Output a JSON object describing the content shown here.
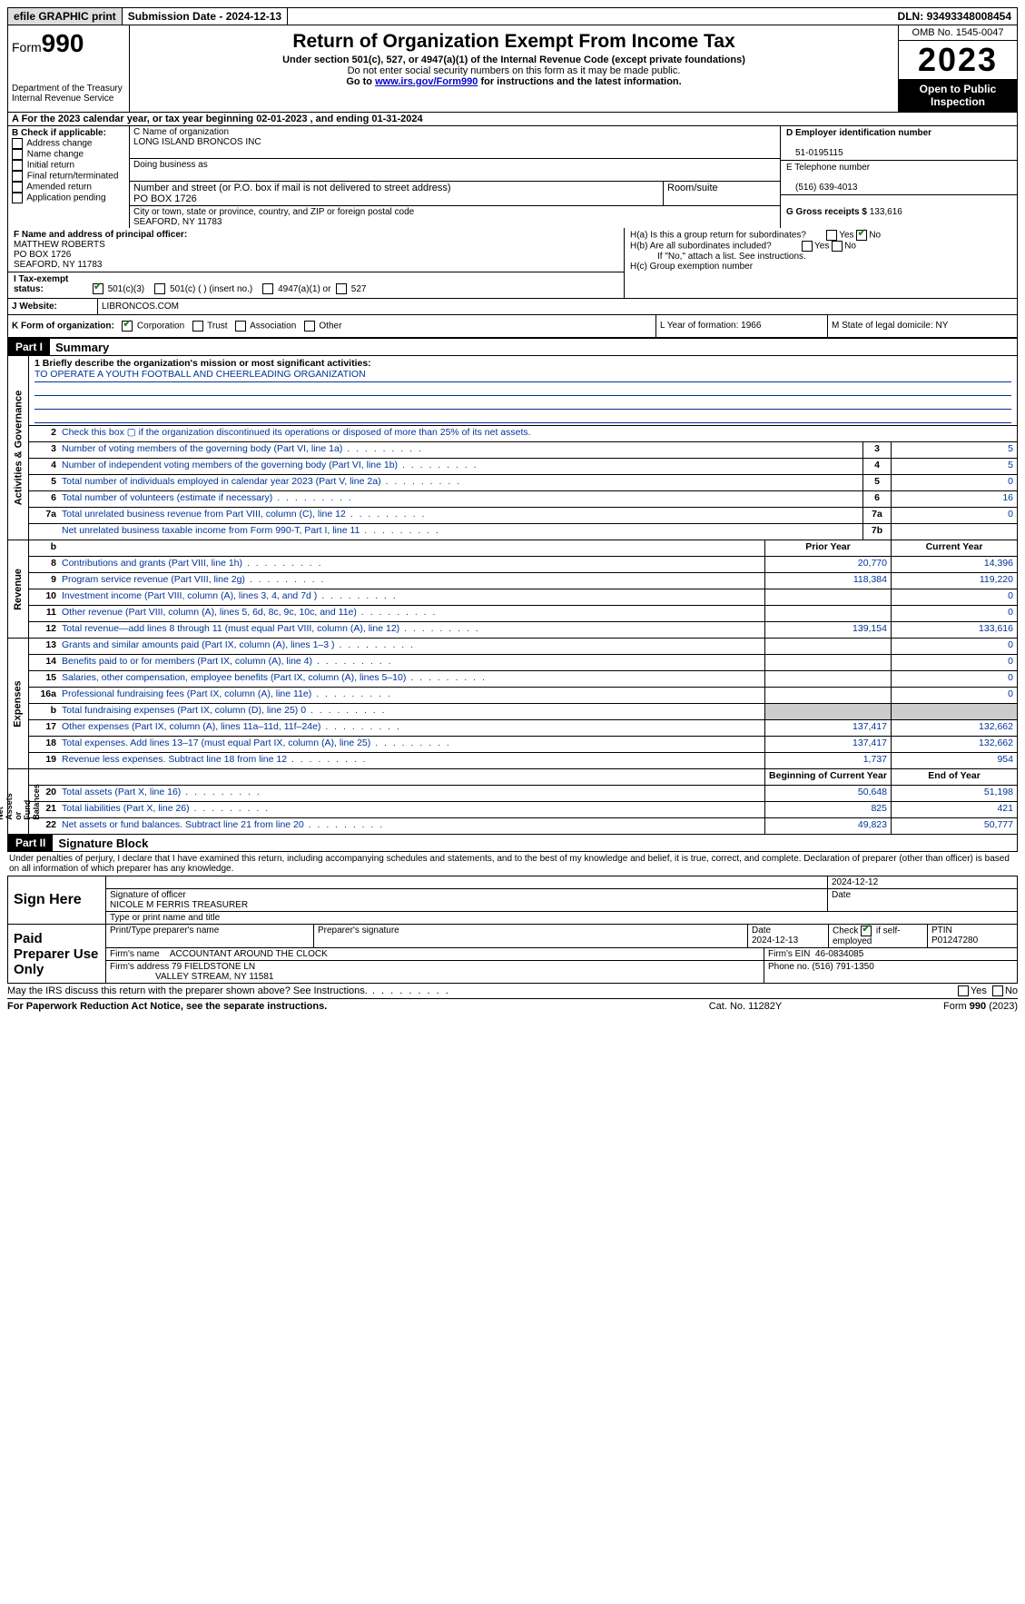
{
  "topbar": {
    "efile": "efile GRAPHIC print",
    "submission": "Submission Date - 2024-12-13",
    "dln_label": "DLN:",
    "dln": "93493348008454"
  },
  "header": {
    "form_prefix": "Form",
    "form_num": "990",
    "dept": "Department of the Treasury\nInternal Revenue Service",
    "title": "Return of Organization Exempt From Income Tax",
    "sub1": "Under section 501(c), 527, or 4947(a)(1) of the Internal Revenue Code (except private foundations)",
    "sub2": "Do not enter social security numbers on this form as it may be made public.",
    "sub3_pre": "Go to ",
    "sub3_link": "www.irs.gov/Form990",
    "sub3_post": " for instructions and the latest information.",
    "omb": "OMB No. 1545-0047",
    "year": "2023",
    "inspect": "Open to Public Inspection"
  },
  "row_a": "A For the 2023 calendar year, or tax year beginning 02-01-2023   , and ending 01-31-2024",
  "col_b": {
    "title": "B Check if applicable:",
    "opts": [
      "Address change",
      "Name change",
      "Initial return",
      "Final return/terminated",
      "Amended return",
      "Application pending"
    ]
  },
  "col_c": {
    "name_lbl": "C Name of organization",
    "name": "LONG ISLAND BRONCOS INC",
    "dba_lbl": "Doing business as",
    "dba": "",
    "addr_lbl": "Number and street (or P.O. box if mail is not delivered to street address)",
    "room_lbl": "Room/suite",
    "addr": "PO BOX 1726",
    "city_lbl": "City or town, state or province, country, and ZIP or foreign postal code",
    "city": "SEAFORD, NY  11783"
  },
  "col_d": {
    "ein_lbl": "D Employer identification number",
    "ein": "51-0195115",
    "tel_lbl": "E Telephone number",
    "tel": "(516) 639-4013",
    "gross_lbl": "G Gross receipts $",
    "gross": "133,616"
  },
  "row_f": {
    "lbl": "F  Name and address of principal officer:",
    "name": "MATTHEW ROBERTS",
    "addr1": "PO BOX 1726",
    "addr2": "SEAFORD, NY  11783"
  },
  "row_h": {
    "a": "H(a)  Is this a group return for subordinates?",
    "b": "H(b)  Are all subordinates included?",
    "b_note": "If \"No,\" attach a list. See instructions.",
    "c": "H(c)  Group exemption number"
  },
  "row_i": {
    "lbl": "I   Tax-exempt status:",
    "o1": "501(c)(3)",
    "o2": "501(c) (  ) (insert no.)",
    "o3": "4947(a)(1) or",
    "o4": "527"
  },
  "row_j": {
    "lbl": "J   Website:",
    "val": "LIBRONCOS.COM"
  },
  "row_k": {
    "lbl": "K Form of organization:",
    "opts": [
      "Corporation",
      "Trust",
      "Association",
      "Other"
    ],
    "l": "L Year of formation: 1966",
    "m": "M State of legal domicile: NY"
  },
  "part1": {
    "tag": "Part I",
    "title": "Summary"
  },
  "mission": {
    "q": "1   Briefly describe the organization's mission or most significant activities:",
    "a": "TO OPERATE A YOUTH FOOTBALL AND CHEERLEADING ORGANIZATION"
  },
  "gov_lines": [
    {
      "n": "2",
      "d": "Check this box ▢ if the organization discontinued its operations or disposed of more than 25% of its net assets.",
      "box": "",
      "v": ""
    },
    {
      "n": "3",
      "d": "Number of voting members of the governing body (Part VI, line 1a)",
      "box": "3",
      "v": "5"
    },
    {
      "n": "4",
      "d": "Number of independent voting members of the governing body (Part VI, line 1b)",
      "box": "4",
      "v": "5"
    },
    {
      "n": "5",
      "d": "Total number of individuals employed in calendar year 2023 (Part V, line 2a)",
      "box": "5",
      "v": "0"
    },
    {
      "n": "6",
      "d": "Total number of volunteers (estimate if necessary)",
      "box": "6",
      "v": "16"
    },
    {
      "n": "7a",
      "d": "Total unrelated business revenue from Part VIII, column (C), line 12",
      "box": "7a",
      "v": "0"
    },
    {
      "n": "",
      "d": "Net unrelated business taxable income from Form 990-T, Part I, line 11",
      "box": "7b",
      "v": ""
    }
  ],
  "rev_hdr": {
    "b": "b",
    "py": "Prior Year",
    "cy": "Current Year"
  },
  "rev_lines": [
    {
      "n": "8",
      "d": "Contributions and grants (Part VIII, line 1h)",
      "py": "20,770",
      "cy": "14,396"
    },
    {
      "n": "9",
      "d": "Program service revenue (Part VIII, line 2g)",
      "py": "118,384",
      "cy": "119,220"
    },
    {
      "n": "10",
      "d": "Investment income (Part VIII, column (A), lines 3, 4, and 7d )",
      "py": "",
      "cy": "0"
    },
    {
      "n": "11",
      "d": "Other revenue (Part VIII, column (A), lines 5, 6d, 8c, 9c, 10c, and 11e)",
      "py": "",
      "cy": "0"
    },
    {
      "n": "12",
      "d": "Total revenue—add lines 8 through 11 (must equal Part VIII, column (A), line 12)",
      "py": "139,154",
      "cy": "133,616"
    }
  ],
  "exp_lines": [
    {
      "n": "13",
      "d": "Grants and similar amounts paid (Part IX, column (A), lines 1–3 )",
      "py": "",
      "cy": "0"
    },
    {
      "n": "14",
      "d": "Benefits paid to or for members (Part IX, column (A), line 4)",
      "py": "",
      "cy": "0"
    },
    {
      "n": "15",
      "d": "Salaries, other compensation, employee benefits (Part IX, column (A), lines 5–10)",
      "py": "",
      "cy": "0"
    },
    {
      "n": "16a",
      "d": "Professional fundraising fees (Part IX, column (A), line 11e)",
      "py": "",
      "cy": "0"
    },
    {
      "n": "b",
      "d": "Total fundraising expenses (Part IX, column (D), line 25) 0",
      "py": "GREY",
      "cy": "GREY"
    },
    {
      "n": "17",
      "d": "Other expenses (Part IX, column (A), lines 11a–11d, 11f–24e)",
      "py": "137,417",
      "cy": "132,662"
    },
    {
      "n": "18",
      "d": "Total expenses. Add lines 13–17 (must equal Part IX, column (A), line 25)",
      "py": "137,417",
      "cy": "132,662"
    },
    {
      "n": "19",
      "d": "Revenue less expenses. Subtract line 18 from line 12",
      "py": "1,737",
      "cy": "954"
    }
  ],
  "na_hdr": {
    "py": "Beginning of Current Year",
    "cy": "End of Year"
  },
  "na_lines": [
    {
      "n": "20",
      "d": "Total assets (Part X, line 16)",
      "py": "50,648",
      "cy": "51,198"
    },
    {
      "n": "21",
      "d": "Total liabilities (Part X, line 26)",
      "py": "825",
      "cy": "421"
    },
    {
      "n": "22",
      "d": "Net assets or fund balances. Subtract line 21 from line 20",
      "py": "49,823",
      "cy": "50,777"
    }
  ],
  "sidelabels": {
    "gov": "Activities & Governance",
    "rev": "Revenue",
    "exp": "Expenses",
    "na": "Net Assets or\nFund Balances"
  },
  "part2": {
    "tag": "Part II",
    "title": "Signature Block"
  },
  "sig_intro": "Under penalties of perjury, I declare that I have examined this return, including accompanying schedules and statements, and to the best of my knowledge and belief, it is true, correct, and complete. Declaration of preparer (other than officer) is based on all information of which preparer has any knowledge.",
  "sign_here": {
    "label": "Sign Here",
    "date": "2024-12-12",
    "sig_lbl": "Signature of officer",
    "name": "NICOLE M FERRIS  TREASURER",
    "type_lbl": "Type or print name and title",
    "date_lbl": "Date"
  },
  "paid": {
    "label": "Paid Preparer Use Only",
    "h1": "Print/Type preparer's name",
    "h2": "Preparer's signature",
    "h3": "Date",
    "date": "2024-12-13",
    "h4": "Check ☑ if self-employed",
    "h5": "PTIN",
    "ptin": "P01247280",
    "firm_lbl": "Firm's name",
    "firm": "ACCOUNTANT AROUND THE CLOCK",
    "ein_lbl": "Firm's EIN",
    "ein": "46-0834085",
    "addr_lbl": "Firm's address",
    "addr1": "79 FIELDSTONE LN",
    "addr2": "VALLEY STREAM, NY  11581",
    "phone_lbl": "Phone no.",
    "phone": "(516) 791-1350"
  },
  "discuss": "May the IRS discuss this return with the preparer shown above? See Instructions.",
  "footer": {
    "l": "For Paperwork Reduction Act Notice, see the separate instructions.",
    "m": "Cat. No. 11282Y",
    "r_pre": "Form ",
    "r_b": "990",
    "r_post": " (2023)"
  }
}
